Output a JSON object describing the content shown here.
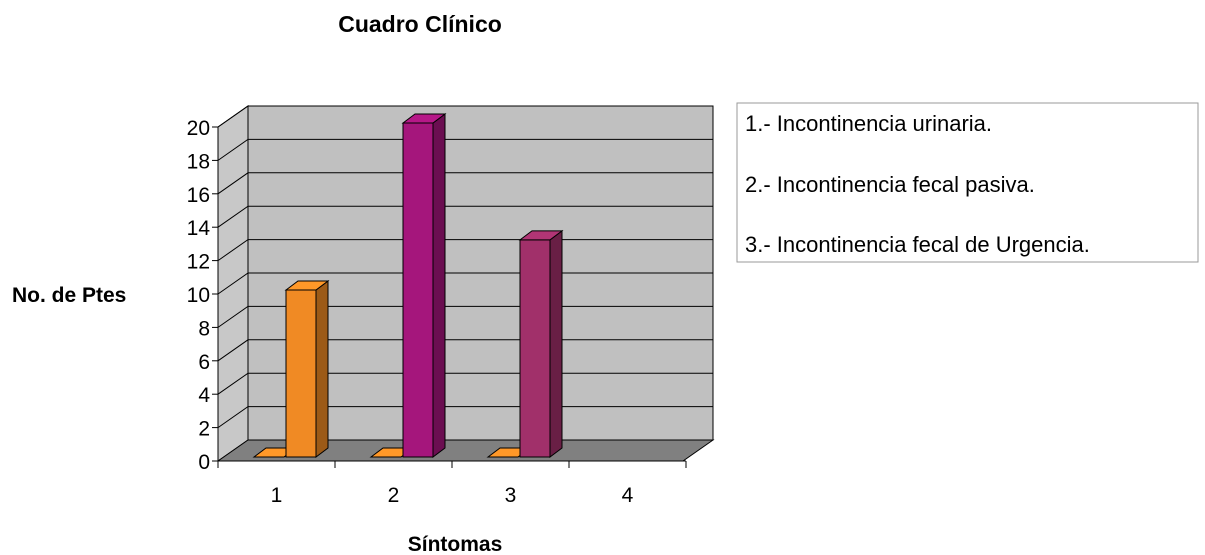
{
  "chart_data": {
    "type": "bar",
    "title": "Cuadro Clínico",
    "xlabel": "Síntomas",
    "ylabel": "No. de Ptes",
    "categories": [
      "1",
      "2",
      "3",
      "4"
    ],
    "ylim": [
      0,
      20
    ],
    "yticks": [
      0,
      2,
      4,
      6,
      8,
      10,
      12,
      14,
      16,
      18,
      20
    ],
    "grid": true,
    "legend_position": "right",
    "series": [
      {
        "color": "#F08A24",
        "values": [
          0,
          0,
          0,
          0
        ]
      },
      {
        "color": "#F08A24",
        "values": [
          10,
          0,
          0,
          0
        ]
      },
      {
        "color": "#F08A24",
        "values": [
          0,
          0,
          0,
          0
        ]
      },
      {
        "color": "#A5167C",
        "values": [
          0,
          20,
          0,
          0
        ]
      },
      {
        "color": "#F08A24",
        "values": [
          0,
          0,
          0,
          0
        ]
      },
      {
        "color": "#A1306A",
        "values": [
          0,
          0,
          13,
          0
        ]
      }
    ],
    "legend": [
      "1.- Incontinencia urinaria.",
      "2.- Incontinencia fecal pasiva.",
      "3.- Incontinencia fecal de Urgencia."
    ]
  }
}
